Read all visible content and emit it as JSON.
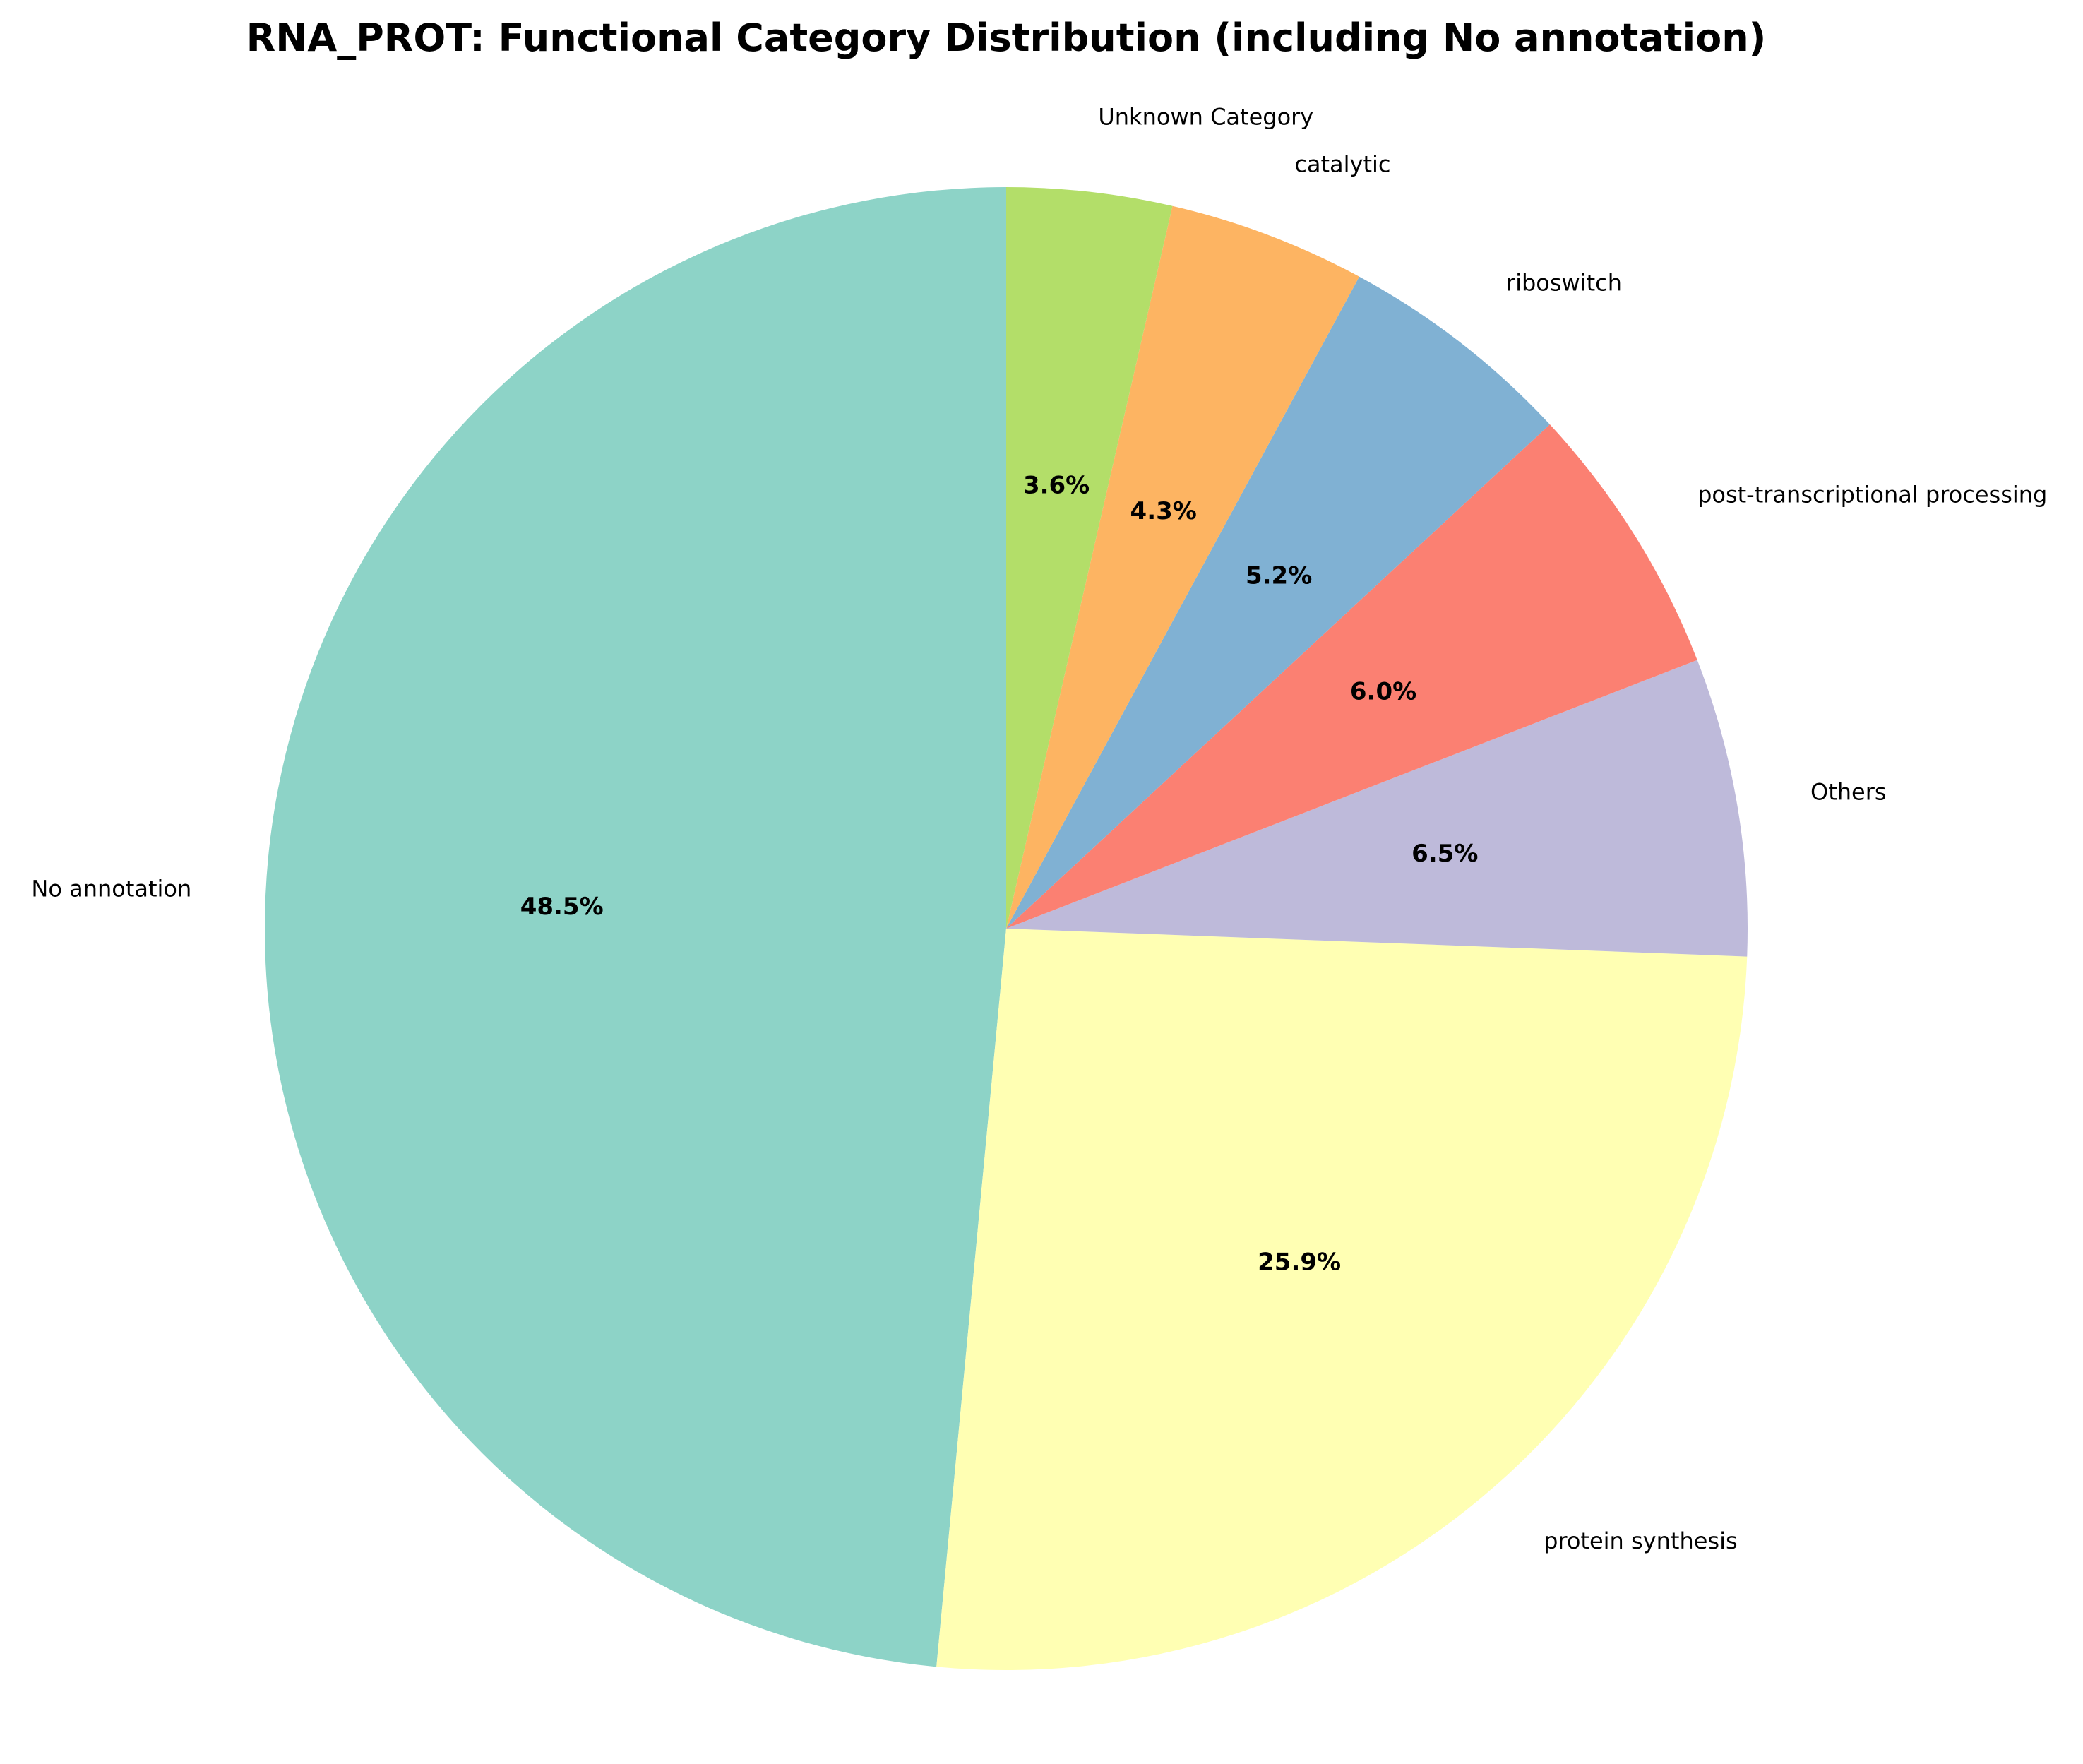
{
  "chart_data": {
    "type": "pie",
    "title": "RNA_PROT: Functional Category Distribution (including No annotation)",
    "slices": [
      {
        "label": "No annotation",
        "value": 48.5,
        "pct_label": "48.5%",
        "color": "#8dd3c7"
      },
      {
        "label": "protein synthesis",
        "value": 25.9,
        "pct_label": "25.9%",
        "color": "#ffffb3"
      },
      {
        "label": "Others",
        "value": 6.5,
        "pct_label": "6.5%",
        "color": "#bebada"
      },
      {
        "label": "post-transcriptional processing",
        "value": 6.0,
        "pct_label": "6.0%",
        "color": "#fb8072"
      },
      {
        "label": "riboswitch",
        "value": 5.2,
        "pct_label": "5.2%",
        "color": "#80b1d3"
      },
      {
        "label": "catalytic",
        "value": 4.3,
        "pct_label": "4.3%",
        "color": "#fdb462"
      },
      {
        "label": "Unknown Category",
        "value": 3.6,
        "pct_label": "3.6%",
        "color": "#b3de69"
      }
    ],
    "start_angle_deg": 90,
    "direction": "counterclockwise",
    "legend": "none"
  }
}
